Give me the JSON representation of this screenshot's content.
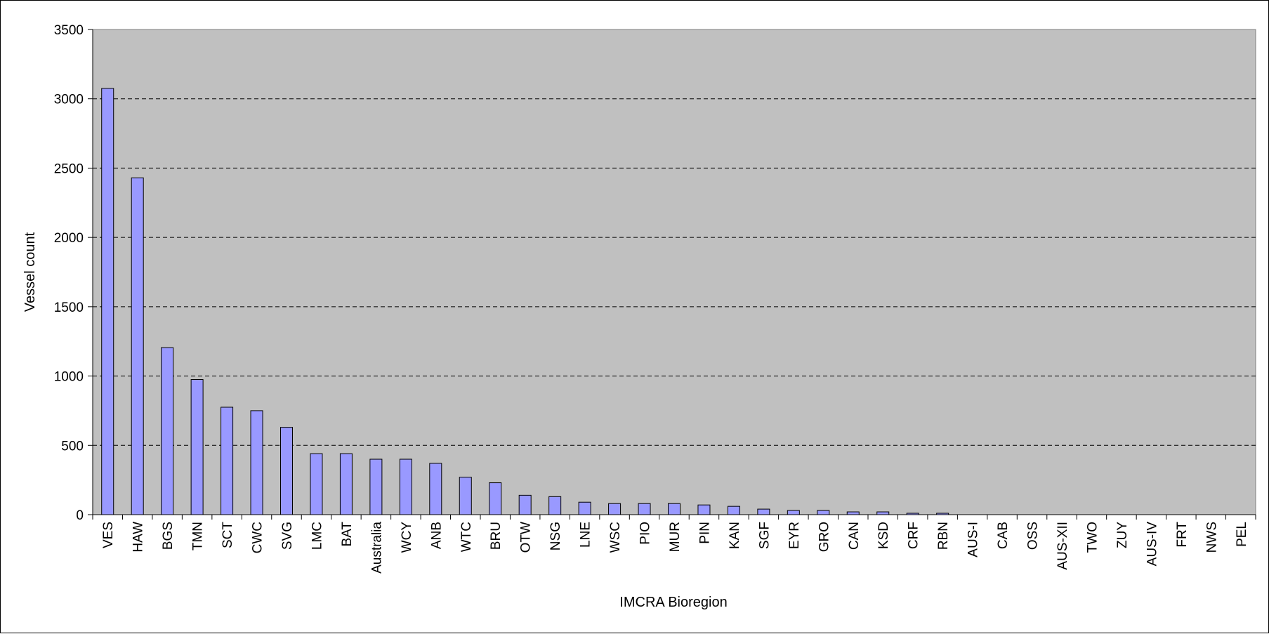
{
  "chart_data": {
    "type": "bar",
    "title": "",
    "xlabel": "IMCRA Bioregion",
    "ylabel": "Vessel count",
    "ylim": [
      0,
      3500
    ],
    "yticks": [
      0,
      500,
      1000,
      1500,
      2000,
      2500,
      3000,
      3500
    ],
    "grid": true,
    "legend": "none",
    "plot_background": "#c0c0c0",
    "bar_color": "#9999ff",
    "categories": [
      "VES",
      "HAW",
      "BGS",
      "TMN",
      "SCT",
      "CWC",
      "SVG",
      "LMC",
      "BAT",
      "Australia",
      "WCY",
      "ANB",
      "WTC",
      "BRU",
      "OTW",
      "NSG",
      "LNE",
      "WSC",
      "PIO",
      "MUR",
      "PIN",
      "KAN",
      "SGF",
      "EYR",
      "GRO",
      "CAN",
      "KSD",
      "CRF",
      "RBN",
      "AUS-I",
      "CAB",
      "OSS",
      "AUS-XII",
      "TWO",
      "ZUY",
      "AUS-IV",
      "FRT",
      "NWS",
      "PEL"
    ],
    "values": [
      3075,
      2430,
      1205,
      975,
      775,
      750,
      630,
      440,
      440,
      400,
      400,
      370,
      270,
      230,
      140,
      130,
      90,
      80,
      80,
      80,
      70,
      60,
      40,
      30,
      30,
      20,
      20,
      10,
      10,
      0,
      0,
      0,
      0,
      0,
      0,
      0,
      0,
      0,
      0
    ]
  }
}
